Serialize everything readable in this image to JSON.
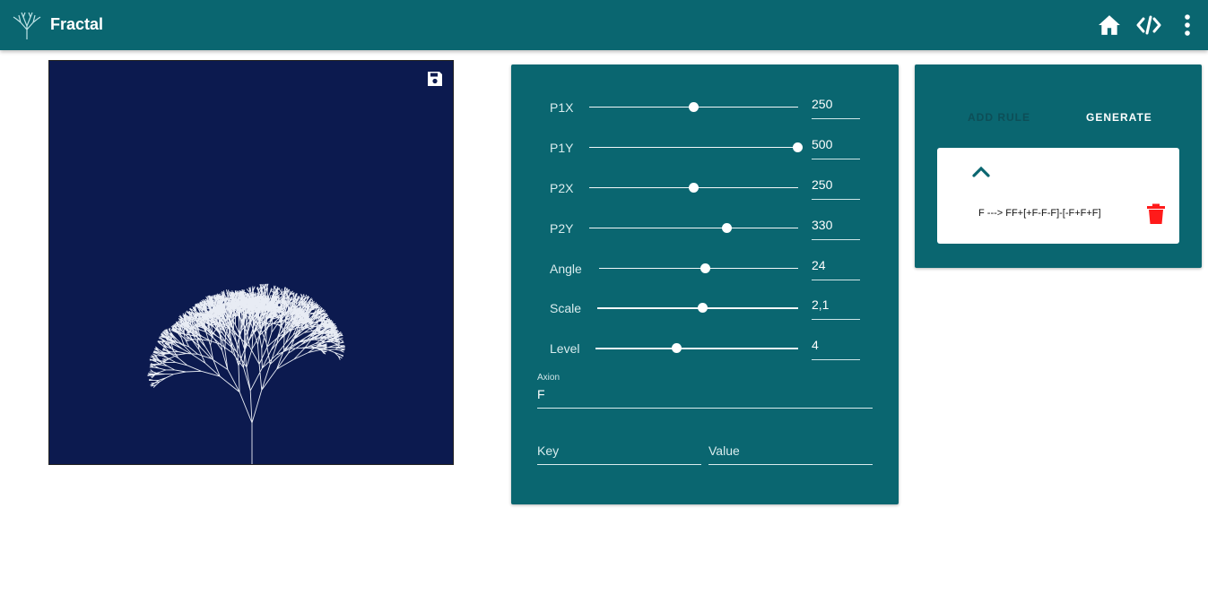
{
  "app": {
    "title": "Fractal"
  },
  "toolbar": {
    "icons": [
      "tree-logo-icon",
      "home-icon",
      "code-icon",
      "more-vert-icon"
    ]
  },
  "canvas": {
    "background": "#0c1a4f",
    "stroke": "#e8ecf4",
    "save_icon": "save-icon"
  },
  "params": [
    {
      "label": "P1X",
      "value": "250",
      "fraction": 0.5
    },
    {
      "label": "P1Y",
      "value": "500",
      "fraction": 1.0
    },
    {
      "label": "P2X",
      "value": "250",
      "fraction": 0.5
    },
    {
      "label": "P2Y",
      "value": "330",
      "fraction": 0.66
    },
    {
      "label": "Angle",
      "value": "24",
      "fraction": 0.53
    },
    {
      "label": "Scale",
      "value": "2,1",
      "fraction": 0.52
    },
    {
      "label": "Level",
      "value": "4",
      "fraction": 0.4
    }
  ],
  "axiom": {
    "label": "Axion",
    "value": "F"
  },
  "rule_inputs": {
    "key_placeholder": "Key",
    "value_placeholder": "Value"
  },
  "actions": {
    "add_rule": "ADD RULE",
    "generate": "GENERATE"
  },
  "rules": [
    {
      "text": "F ---> FF+[+F-F-F]-[-F+F+F]"
    }
  ],
  "colors": {
    "primary": "#0a6670",
    "danger": "#ff1a1a"
  }
}
